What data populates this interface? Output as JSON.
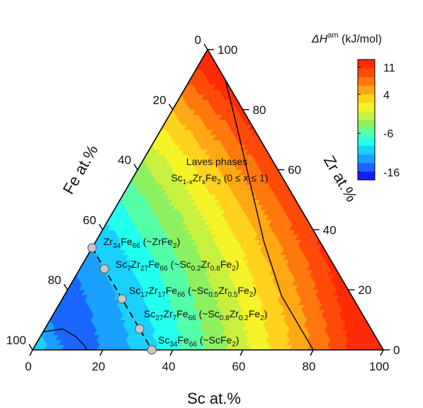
{
  "chart_data": {
    "type": "ternary-contour",
    "colorbar": {
      "title_symbol": "ΔH",
      "title_sup": "am",
      "title_unit": " (kJ/mol)",
      "tick_labels": [
        "11",
        "4",
        "-6",
        "-16"
      ],
      "tick_values": [
        11,
        4,
        -6,
        -16
      ],
      "range": [
        -18,
        13
      ],
      "colors": [
        "#1a1aff",
        "#1a66ff",
        "#1aa0ff",
        "#1ad0ff",
        "#22ffee",
        "#55ffaa",
        "#8cf060",
        "#c8f040",
        "#f4f428",
        "#ffd21e",
        "#ffa814",
        "#ff780e",
        "#ff4a0a",
        "#ff2a06"
      ]
    },
    "axes": {
      "sc": {
        "title": "Sc at.%",
        "ticks": [
          "0",
          "20",
          "40",
          "60",
          "80",
          "100"
        ]
      },
      "zr": {
        "title": "Zr at.%",
        "ticks": [
          "0",
          "20",
          "40",
          "60",
          "80",
          "100"
        ]
      },
      "fe": {
        "title": "Fe at.%",
        "ticks": [
          "0",
          "20",
          "40",
          "60",
          "80",
          "100"
        ]
      }
    },
    "region_label": {
      "line1": "Laves phases",
      "line2": {
        "p1": "Sc",
        "s1": "1-x",
        "p2": "Zr",
        "s2": "x",
        "p3": "Fe",
        "s3": "2",
        "p4": " (0 ≤ x ≤ 1)"
      }
    },
    "points": [
      {
        "sc": 0,
        "zr": 34,
        "fe": 66,
        "label": {
          "a": "Zr",
          "as": "34",
          "b": "Fe",
          "bs": "66",
          "c": " (~ZrFe",
          "cs": "2",
          "d": ")"
        }
      },
      {
        "sc": 7,
        "zr": 27,
        "fe": 66,
        "label": {
          "a": "Sc",
          "as": "7",
          "b": "Zr",
          "bs": "27",
          "c": "Fe",
          "cs": "66",
          "d": " (~Sc",
          "ds": "0.2",
          "e": "Zr",
          "es": "0.8",
          "f": "Fe",
          "fs": "2",
          "g": ")"
        }
      },
      {
        "sc": 17,
        "zr": 17,
        "fe": 66,
        "label": {
          "a": "Sc",
          "as": "17",
          "b": "Zr",
          "bs": "17",
          "c": "Fe",
          "cs": "66",
          "d": " (~Sc",
          "ds": "0.5",
          "e": "Zr",
          "es": "0.5",
          "f": "Fe",
          "fs": "2",
          "g": ")"
        }
      },
      {
        "sc": 27,
        "zr": 7,
        "fe": 66,
        "label": {
          "a": "Sc",
          "as": "27",
          "b": "Zr",
          "bs": "7",
          "c": "Fe",
          "cs": "66",
          "d": " (~Sc",
          "ds": "0.8",
          "e": "Zr",
          "es": "0.2",
          "f": "Fe",
          "fs": "2",
          "g": ")"
        }
      },
      {
        "sc": 34,
        "zr": 0,
        "fe": 66,
        "label": {
          "a": "Sc",
          "as": "34",
          "b": "Fe",
          "bs": "66",
          "c": " (~ScFe",
          "cs": "2",
          "d": ")"
        }
      }
    ]
  }
}
